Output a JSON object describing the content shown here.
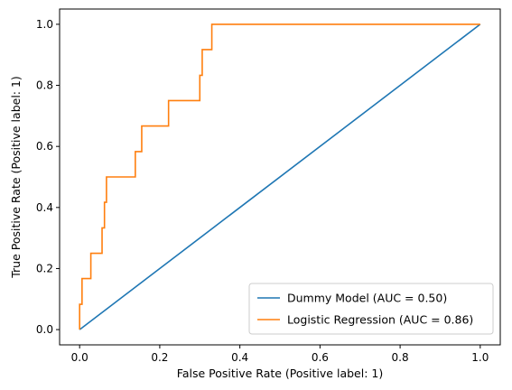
{
  "chart_data": {
    "type": "line",
    "xlabel": "False Positive Rate (Positive label: 1)",
    "ylabel": "True Positive Rate (Positive label: 1)",
    "xlim": [
      -0.05,
      1.05
    ],
    "ylim": [
      -0.05,
      1.05
    ],
    "x_ticks": [
      "0.0",
      "0.2",
      "0.4",
      "0.6",
      "0.8",
      "1.0"
    ],
    "y_ticks": [
      "0.0",
      "0.2",
      "0.4",
      "0.6",
      "0.8",
      "1.0"
    ],
    "legend_position": "lower-right",
    "series": [
      {
        "name": "Dummy Model (AUC = 0.50)",
        "color": "#1f77b4",
        "x": [
          0,
          1
        ],
        "y": [
          0,
          1
        ]
      },
      {
        "name": "Logistic Regression (AUC = 0.86)",
        "color": "#ff7f0e",
        "x": [
          0,
          0,
          0.006,
          0.006,
          0.011,
          0.011,
          0.028,
          0.028,
          0.056,
          0.056,
          0.062,
          0.062,
          0.067,
          0.067,
          0.139,
          0.139,
          0.155,
          0.155,
          0.222,
          0.222,
          0.3,
          0.3,
          0.306,
          0.306,
          0.311,
          0.311,
          0.33,
          0.33,
          1.0
        ],
        "y": [
          0,
          0.083,
          0.083,
          0.167,
          0.167,
          0.167,
          0.167,
          0.25,
          0.25,
          0.333,
          0.333,
          0.417,
          0.417,
          0.5,
          0.5,
          0.583,
          0.583,
          0.667,
          0.667,
          0.75,
          0.75,
          0.833,
          0.833,
          0.917,
          0.917,
          0.917,
          0.917,
          1.0,
          1.0
        ]
      }
    ]
  }
}
